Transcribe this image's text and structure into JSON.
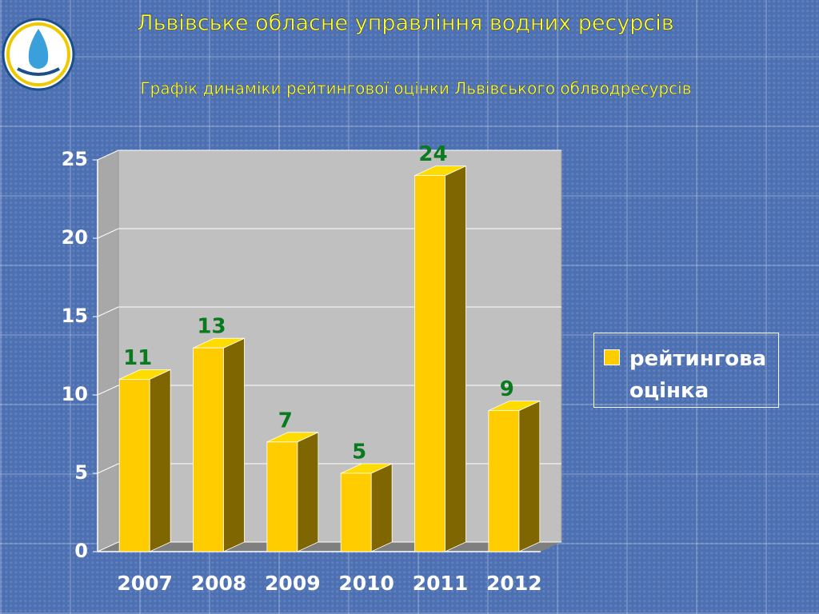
{
  "chart_data": {
    "type": "bar3d",
    "title": "Львівське обласне управління водних ресурсів",
    "subtitle": "Графік динаміки рейтингової оцінки Львівського облводресурсів",
    "categories": [
      "2007",
      "2008",
      "2009",
      "2010",
      "2011",
      "2012"
    ],
    "series": [
      {
        "name": "рейтингова оцінка",
        "color": "#ffcc00",
        "values": [
          11,
          13,
          7,
          5,
          24,
          9
        ]
      }
    ],
    "ylim": [
      0,
      25
    ],
    "yticks": [
      0,
      5,
      10,
      15,
      20,
      25
    ],
    "grid": true,
    "legend": "right"
  }
}
